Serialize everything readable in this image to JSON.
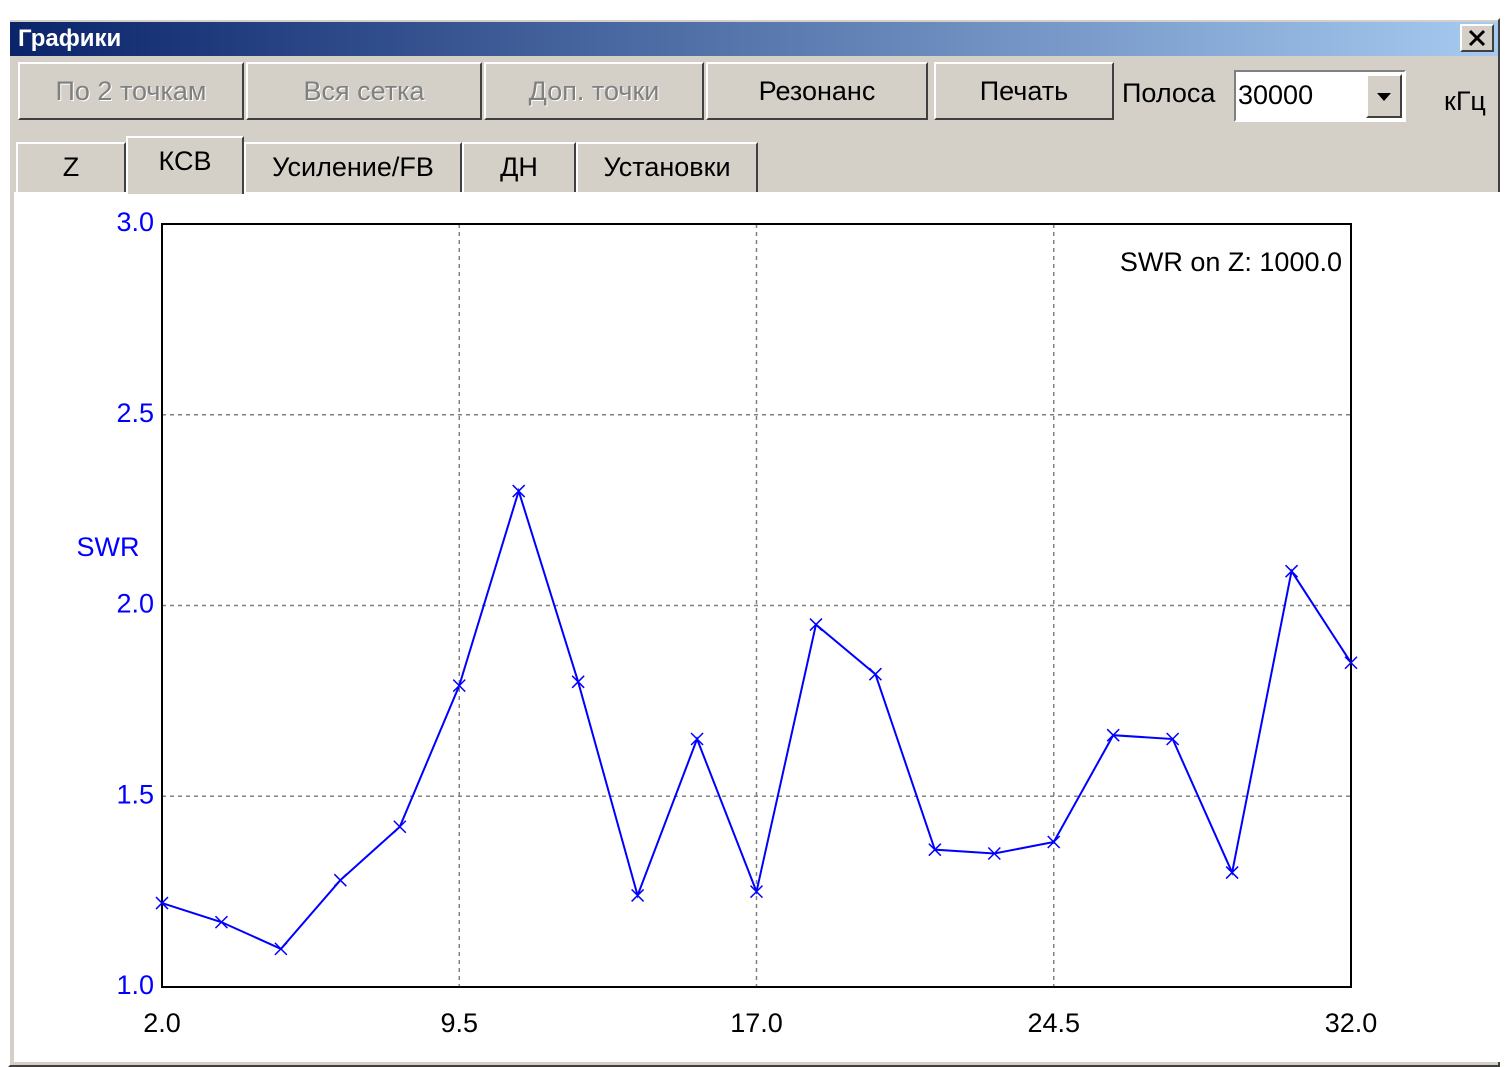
{
  "window": {
    "title": "Графики",
    "buttons": [
      {
        "label": "По 2 точкам",
        "enabled": false
      },
      {
        "label": "Вся сетка",
        "enabled": false
      },
      {
        "label": "Доп. точки",
        "enabled": false
      },
      {
        "label": "Резонанс",
        "enabled": true
      },
      {
        "label": "Печать",
        "enabled": true
      }
    ],
    "band_label": "Полоса",
    "band_value": "30000",
    "band_unit": "кГц",
    "tabs": [
      "Z",
      "КСВ",
      "Усиление/FB",
      "ДН",
      "Установки"
    ],
    "active_tab": 1
  },
  "chart_data": {
    "type": "line",
    "y_label": "SWR",
    "annotation": "SWR on Z: 1000.0",
    "x": [
      2.0,
      3.5,
      5.0,
      6.5,
      8.0,
      9.5,
      11.0,
      12.5,
      14.0,
      15.5,
      17.0,
      18.5,
      20.0,
      21.5,
      23.0,
      24.5,
      26.0,
      27.5,
      29.0,
      30.5,
      32.0
    ],
    "series": [
      {
        "name": "SWR",
        "color": "#0000ff",
        "values": [
          1.22,
          1.17,
          1.1,
          1.28,
          1.42,
          1.79,
          2.3,
          1.8,
          1.24,
          1.65,
          1.25,
          1.95,
          1.82,
          1.36,
          1.35,
          1.38,
          1.66,
          1.65,
          1.3,
          2.09,
          1.85
        ]
      }
    ],
    "xlim": [
      2.0,
      32.0
    ],
    "xticks": [
      {
        "value": 2.0,
        "label": "2.0"
      },
      9.5,
      {
        "value": 17.0,
        "label": "17.0"
      },
      24.5,
      {
        "value": 32.0,
        "label": "32.0"
      }
    ],
    "ylim": [
      1.0,
      3.0
    ],
    "yticks": [
      {
        "value": 1.0,
        "label": "1.0"
      },
      {
        "value": 1.5,
        "label": "1.5"
      },
      {
        "value": 2.0,
        "label": "2.0"
      },
      {
        "value": 2.5,
        "label": "2.5"
      },
      {
        "value": 3.0,
        "label": "3.0"
      }
    ],
    "grid": true,
    "markers": "x"
  }
}
